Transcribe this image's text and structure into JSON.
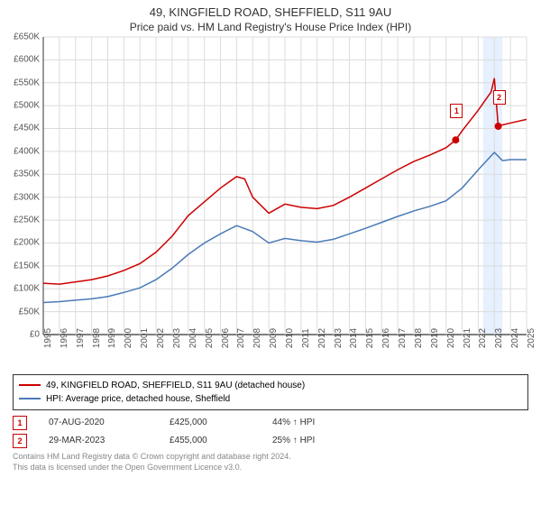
{
  "title": "49, KINGFIELD ROAD, SHEFFIELD, S11 9AU",
  "subtitle": "Price paid vs. HM Land Registry's House Price Index (HPI)",
  "chart": {
    "type": "line",
    "ylim": [
      0,
      650000
    ],
    "ytick_step": 50000,
    "y_labels": [
      "£0",
      "£50K",
      "£100K",
      "£150K",
      "£200K",
      "£250K",
      "£300K",
      "£350K",
      "£400K",
      "£450K",
      "£500K",
      "£550K",
      "£600K",
      "£650K"
    ],
    "xlim": [
      1995,
      2025
    ],
    "x_labels": [
      "1995",
      "1996",
      "1997",
      "1998",
      "1999",
      "2000",
      "2001",
      "2002",
      "2003",
      "2004",
      "2005",
      "2006",
      "2007",
      "2008",
      "2009",
      "2010",
      "2011",
      "2012",
      "2013",
      "2014",
      "2015",
      "2016",
      "2017",
      "2018",
      "2019",
      "2020",
      "2021",
      "2022",
      "2023",
      "2024",
      "2025"
    ],
    "background_color": "#ffffff",
    "grid_color": "#dcdcdc",
    "highlight_band_color": "#e6f0ff",
    "highlight_band": [
      2022.3,
      2023.5
    ],
    "series": [
      {
        "name": "property",
        "label": "49, KINGFIELD ROAD, SHEFFIELD, S11 9AU (detached house)",
        "color": "#cc0000",
        "line_width": 1.5,
        "data": [
          [
            1995,
            112000
          ],
          [
            1996,
            110000
          ],
          [
            1997,
            115000
          ],
          [
            1998,
            120000
          ],
          [
            1999,
            128000
          ],
          [
            2000,
            140000
          ],
          [
            2001,
            155000
          ],
          [
            2002,
            180000
          ],
          [
            2003,
            215000
          ],
          [
            2004,
            260000
          ],
          [
            2005,
            290000
          ],
          [
            2006,
            320000
          ],
          [
            2007,
            345000
          ],
          [
            2007.5,
            340000
          ],
          [
            2008,
            300000
          ],
          [
            2009,
            265000
          ],
          [
            2010,
            285000
          ],
          [
            2011,
            278000
          ],
          [
            2012,
            275000
          ],
          [
            2013,
            282000
          ],
          [
            2014,
            300000
          ],
          [
            2015,
            320000
          ],
          [
            2016,
            340000
          ],
          [
            2017,
            360000
          ],
          [
            2018,
            378000
          ],
          [
            2019,
            392000
          ],
          [
            2020,
            408000
          ],
          [
            2020.6,
            425000
          ],
          [
            2021,
            445000
          ],
          [
            2022,
            490000
          ],
          [
            2022.8,
            530000
          ],
          [
            2023,
            560000
          ],
          [
            2023.24,
            455000
          ],
          [
            2023.5,
            458000
          ],
          [
            2024,
            462000
          ],
          [
            2025,
            470000
          ]
        ]
      },
      {
        "name": "hpi",
        "label": "HPI: Average price, detached house, Sheffield",
        "color": "#4a7ab8",
        "line_width": 1.5,
        "data": [
          [
            1995,
            70000
          ],
          [
            1996,
            72000
          ],
          [
            1997,
            75000
          ],
          [
            1998,
            78000
          ],
          [
            1999,
            83000
          ],
          [
            2000,
            92000
          ],
          [
            2001,
            102000
          ],
          [
            2002,
            120000
          ],
          [
            2003,
            145000
          ],
          [
            2004,
            175000
          ],
          [
            2005,
            200000
          ],
          [
            2006,
            220000
          ],
          [
            2007,
            238000
          ],
          [
            2008,
            225000
          ],
          [
            2009,
            200000
          ],
          [
            2010,
            210000
          ],
          [
            2011,
            205000
          ],
          [
            2012,
            202000
          ],
          [
            2013,
            208000
          ],
          [
            2014,
            220000
          ],
          [
            2015,
            232000
          ],
          [
            2016,
            245000
          ],
          [
            2017,
            258000
          ],
          [
            2018,
            270000
          ],
          [
            2019,
            280000
          ],
          [
            2020,
            292000
          ],
          [
            2021,
            320000
          ],
          [
            2022,
            360000
          ],
          [
            2023,
            398000
          ],
          [
            2023.5,
            380000
          ],
          [
            2024,
            382000
          ],
          [
            2025,
            382000
          ]
        ]
      }
    ],
    "sale_markers": [
      {
        "n": "1",
        "x": 2020.6,
        "y": 425000,
        "color": "#cc0000"
      },
      {
        "n": "2",
        "x": 2023.24,
        "y": 455000,
        "color": "#cc0000"
      }
    ]
  },
  "legend": {
    "items": [
      {
        "color": "#cc0000",
        "label": "49, KINGFIELD ROAD, SHEFFIELD, S11 9AU (detached house)"
      },
      {
        "color": "#4a7ab8",
        "label": "HPI: Average price, detached house, Sheffield"
      }
    ]
  },
  "sales": [
    {
      "n": "1",
      "color": "#cc0000",
      "date": "07-AUG-2020",
      "price": "£425,000",
      "pct": "44% ↑ HPI"
    },
    {
      "n": "2",
      "color": "#cc0000",
      "date": "29-MAR-2023",
      "price": "£455,000",
      "pct": "25% ↑ HPI"
    }
  ],
  "footer": {
    "line1": "Contains HM Land Registry data © Crown copyright and database right 2024.",
    "line2": "This data is licensed under the Open Government Licence v3.0."
  }
}
